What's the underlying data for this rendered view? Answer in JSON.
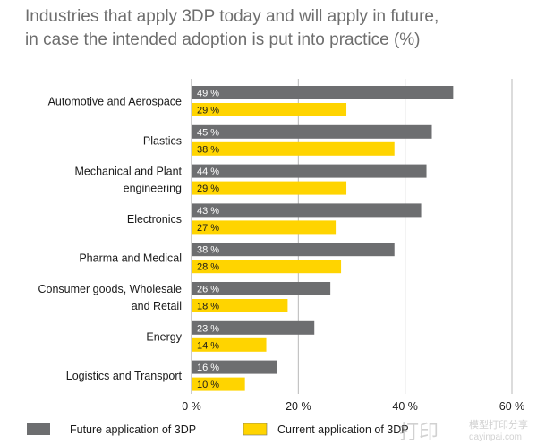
{
  "chart_data": {
    "type": "bar",
    "orientation": "horizontal",
    "title": "Industries that apply 3DP today and will apply in future,",
    "subtitle": "in case the intended adoption is put into practice (%)",
    "categories": [
      [
        "Automotive and Aerospace"
      ],
      [
        "Plastics"
      ],
      [
        "Mechanical and Plant",
        "engineering"
      ],
      [
        "Electronics"
      ],
      [
        "Pharma and Medical"
      ],
      [
        "Consumer goods, Wholesale",
        "and Retail"
      ],
      [
        "Energy"
      ],
      [
        "Logistics and Transport"
      ]
    ],
    "series": [
      {
        "name": "Future application of 3DP",
        "color": "#6d6e70",
        "label_color": "#ffffff",
        "values": [
          49,
          45,
          44,
          43,
          38,
          26,
          23,
          16
        ],
        "value_labels": [
          "49 %",
          "45 %",
          "44 %",
          "43 %",
          "38 %",
          "26 %",
          "23 %",
          "16 %"
        ]
      },
      {
        "name": "Current application of 3DP",
        "color": "#ffd400",
        "label_color": "#1a1a1a",
        "values": [
          29,
          38,
          29,
          27,
          28,
          18,
          14,
          10
        ],
        "value_labels": [
          "29 %",
          "38 %",
          "29 %",
          "27 %",
          "28 %",
          "18 %",
          "14 %",
          "10 %"
        ]
      }
    ],
    "xlim": [
      0,
      60
    ],
    "xticks": [
      0,
      20,
      40,
      60
    ],
    "xtick_labels": [
      "0 %",
      "20 %",
      "40 %",
      "60 %"
    ],
    "grid": true,
    "legend_position": "bottom"
  },
  "watermark": {
    "logo_text": "打印",
    "site_name": "模型打印分享",
    "url": "dayinpai.com"
  }
}
